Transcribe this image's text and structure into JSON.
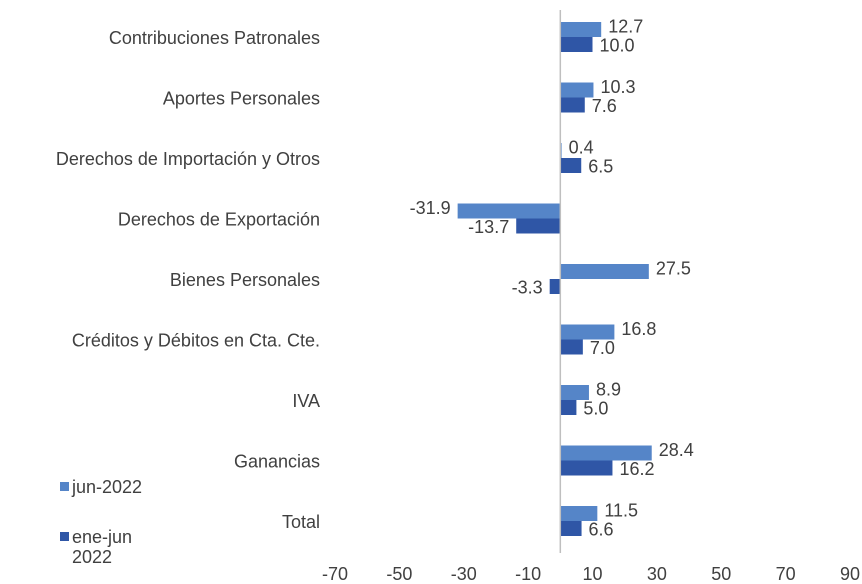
{
  "chart_data": {
    "type": "hbar",
    "categories": [
      "Contribuciones Patronales",
      "Aportes Personales",
      "Derechos de Importación y Otros",
      "Derechos de Exportación",
      "Bienes Personales",
      "Créditos y Débitos en Cta. Cte.",
      "IVA",
      "Ganancias",
      "Total"
    ],
    "series": [
      {
        "name": "jun-2022",
        "color": "#5585c8",
        "values": [
          12.7,
          10.3,
          0.4,
          -31.9,
          27.5,
          16.8,
          8.9,
          28.4,
          11.5
        ],
        "value_labels": [
          "12.7",
          "10.3",
          "0.4",
          "-31.9",
          "27.5",
          "16.8",
          "8.9",
          "28.4",
          "11.5"
        ]
      },
      {
        "name": "ene-jun 2022",
        "color": "#2f56a6",
        "values": [
          10,
          7.6,
          6.5,
          -13.7,
          -3.3,
          7,
          5,
          16.2,
          6.6
        ],
        "value_labels": [
          "10.0",
          "7.6",
          "6.5",
          "-13.7",
          "-3.3",
          "7.0",
          "5.0",
          "16.2",
          "6.6"
        ]
      }
    ],
    "xlim": [
      -70,
      90
    ],
    "xticks": [
      -70,
      -50,
      -30,
      -10,
      10,
      30,
      50,
      70,
      90
    ]
  }
}
